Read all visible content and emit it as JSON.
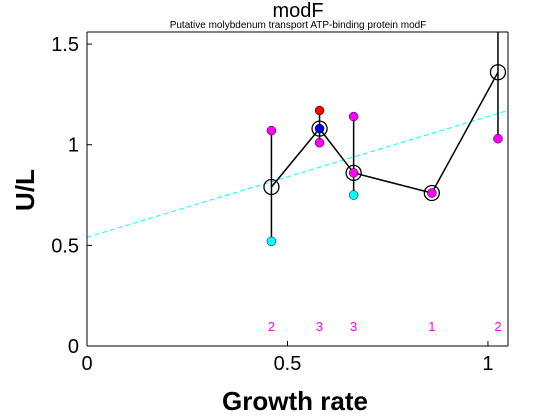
{
  "chart_data": {
    "type": "scatter",
    "title": "modF",
    "subtitle": "Putative molybdenum transport ATP-binding protein modF",
    "xlabel": "Growth rate",
    "ylabel": "U/L",
    "xlim": [
      0,
      1.05
    ],
    "ylim": [
      0,
      1.56
    ],
    "xticks": [
      0,
      0.5,
      1
    ],
    "xtick_labels": [
      "0",
      "0.5",
      "1"
    ],
    "yticks": [
      0,
      0.5,
      1,
      1.5
    ],
    "ytick_labels": [
      "0",
      "0.5",
      "1",
      "1.5"
    ],
    "grid": false,
    "mean_line": {
      "x": [
        0.46,
        0.58,
        0.665,
        0.86,
        1.025
      ],
      "y": [
        0.79,
        1.08,
        0.86,
        0.76,
        1.36
      ]
    },
    "error_bars": [
      {
        "x": 0.46,
        "low": 0.52,
        "high": 1.07
      },
      {
        "x": 0.58,
        "low": 1.01,
        "high": 1.17
      },
      {
        "x": 0.665,
        "low": 0.75,
        "high": 1.14
      },
      {
        "x": 0.86,
        "low": 0.76,
        "high": 0.76
      },
      {
        "x": 1.025,
        "low": 1.03,
        "high": 1.56
      }
    ],
    "replicate_points": [
      {
        "x": 0.46,
        "y": 1.07,
        "color": "#ff00ff"
      },
      {
        "x": 0.46,
        "y": 0.52,
        "color": "#00ffff"
      },
      {
        "x": 0.58,
        "y": 1.17,
        "color": "#ff0000"
      },
      {
        "x": 0.58,
        "y": 1.08,
        "color": "#0000ff"
      },
      {
        "x": 0.58,
        "y": 1.01,
        "color": "#ff00ff"
      },
      {
        "x": 0.665,
        "y": 1.14,
        "color": "#ff00ff"
      },
      {
        "x": 0.665,
        "y": 0.86,
        "color": "#ff00ff"
      },
      {
        "x": 0.665,
        "y": 0.75,
        "color": "#00ffff"
      },
      {
        "x": 0.86,
        "y": 0.76,
        "color": "#ff00ff"
      },
      {
        "x": 1.025,
        "y": 1.03,
        "color": "#ff00ff"
      }
    ],
    "trend_line": {
      "x": [
        0,
        1.05
      ],
      "y": [
        0.54,
        1.17
      ],
      "color": "#00ffff"
    },
    "count_labels": [
      {
        "x": 0.46,
        "text": "2"
      },
      {
        "x": 0.58,
        "text": "3"
      },
      {
        "x": 0.665,
        "text": "3"
      },
      {
        "x": 0.86,
        "text": "1"
      },
      {
        "x": 1.025,
        "text": "2"
      }
    ],
    "count_label_y": 0.1,
    "colors": {
      "count_label": "#ff00ff",
      "mean_line": "#000000"
    }
  }
}
